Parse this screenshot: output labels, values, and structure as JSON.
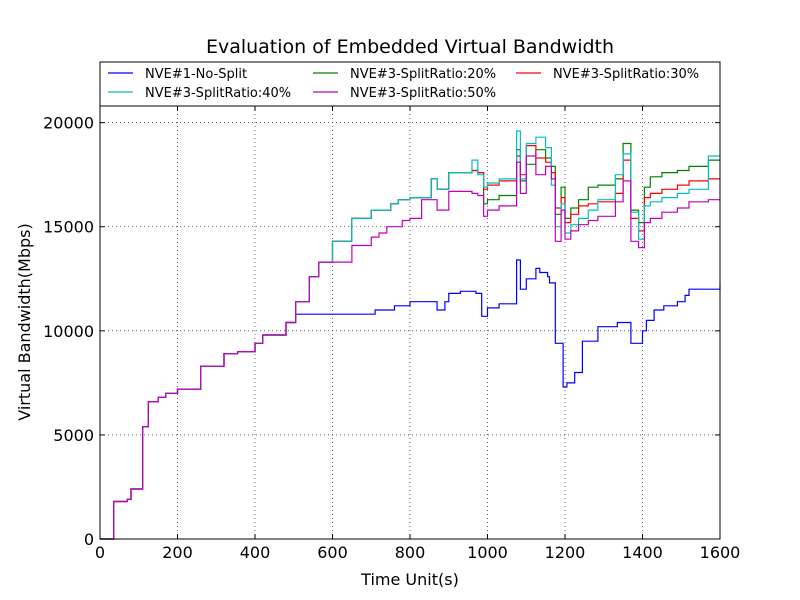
{
  "chart_data": {
    "type": "line",
    "title": "Evaluation of Embedded Virtual Bandwidth",
    "xlabel": "Time Unit(s)",
    "ylabel": "Virtual Bandwidth(Mbps)",
    "xlim": [
      0,
      1600
    ],
    "ylim": [
      0,
      20800
    ],
    "xticks": [
      0,
      200,
      400,
      600,
      800,
      1000,
      1200,
      1400,
      1600
    ],
    "yticks": [
      0,
      5000,
      10000,
      15000,
      20000
    ],
    "grid": true,
    "legend_position": "top",
    "series": [
      {
        "name": "NVE#1-No-Split",
        "color": "#0000ff",
        "x": [
          0,
          35,
          70,
          80,
          110,
          125,
          150,
          170,
          200,
          260,
          320,
          355,
          400,
          420,
          480,
          505,
          540,
          710,
          760,
          800,
          870,
          890,
          900,
          930,
          970,
          985,
          1000,
          1030,
          1075,
          1085,
          1100,
          1125,
          1135,
          1155,
          1160,
          1175,
          1195,
          1205,
          1225,
          1245,
          1285,
          1335,
          1370,
          1400,
          1410,
          1430,
          1455,
          1490,
          1510,
          1520,
          1600
        ],
        "y": [
          0,
          1800,
          1900,
          2400,
          5400,
          6600,
          6800,
          7000,
          7200,
          8300,
          8900,
          9000,
          9400,
          9800,
          10400,
          10800,
          10800,
          11000,
          11200,
          11400,
          11000,
          11400,
          11800,
          11900,
          11800,
          10700,
          11100,
          11300,
          13400,
          12000,
          12500,
          13000,
          12800,
          12600,
          12300,
          9400,
          7300,
          7500,
          8000,
          9500,
          10200,
          10400,
          9400,
          10000,
          10500,
          11000,
          11200,
          11400,
          11700,
          12000,
          12200
        ]
      },
      {
        "name": "NVE#3-SplitRatio:20%",
        "color": "#008000",
        "x": [
          0,
          35,
          70,
          80,
          110,
          125,
          150,
          170,
          200,
          260,
          320,
          355,
          400,
          420,
          480,
          505,
          540,
          565,
          600,
          650,
          700,
          750,
          770,
          800,
          855,
          870,
          900,
          960,
          975,
          990,
          1000,
          1030,
          1075,
          1085,
          1100,
          1125,
          1150,
          1165,
          1175,
          1190,
          1200,
          1215,
          1235,
          1260,
          1285,
          1330,
          1350,
          1370,
          1390,
          1405,
          1420,
          1450,
          1490,
          1520,
          1570,
          1600
        ],
        "y": [
          0,
          1800,
          1900,
          2400,
          5400,
          6600,
          6800,
          7000,
          7200,
          8300,
          8900,
          9000,
          9400,
          9800,
          10400,
          11400,
          12600,
          13300,
          14300,
          15400,
          15800,
          16100,
          16300,
          16400,
          17300,
          16800,
          17600,
          17700,
          17600,
          16100,
          16300,
          16500,
          18700,
          17200,
          18000,
          18700,
          18300,
          17900,
          15600,
          16900,
          15400,
          15900,
          16300,
          16900,
          17000,
          17300,
          19000,
          15800,
          15200,
          16900,
          17400,
          17600,
          17700,
          17900,
          18200,
          18200
        ]
      },
      {
        "name": "NVE#3-SplitRatio:30%",
        "color": "#ff0000",
        "x": [
          0,
          35,
          70,
          80,
          110,
          125,
          150,
          170,
          200,
          260,
          320,
          355,
          400,
          420,
          480,
          505,
          540,
          565,
          600,
          650,
          700,
          750,
          770,
          800,
          855,
          870,
          900,
          960,
          975,
          990,
          1000,
          1030,
          1075,
          1085,
          1100,
          1125,
          1150,
          1165,
          1175,
          1190,
          1200,
          1215,
          1235,
          1260,
          1285,
          1330,
          1350,
          1370,
          1390,
          1405,
          1420,
          1450,
          1490,
          1520,
          1570,
          1600
        ],
        "y": [
          0,
          1800,
          1900,
          2400,
          5400,
          6600,
          6800,
          7000,
          7200,
          8300,
          8900,
          9000,
          9400,
          9800,
          10400,
          11400,
          12600,
          13300,
          14300,
          15400,
          15800,
          16100,
          16300,
          16400,
          17300,
          16800,
          17600,
          17700,
          17600,
          16800,
          17000,
          17200,
          18400,
          17500,
          18900,
          18300,
          18100,
          17600,
          15900,
          16400,
          15200,
          15600,
          16000,
          16100,
          16200,
          16600,
          18200,
          15400,
          14800,
          16400,
          16600,
          16800,
          17000,
          17200,
          17300,
          17300
        ]
      },
      {
        "name": "NVE#3-SplitRatio:40%",
        "color": "#00bfbf",
        "x": [
          0,
          35,
          70,
          80,
          110,
          125,
          150,
          170,
          200,
          260,
          320,
          355,
          400,
          420,
          480,
          505,
          540,
          565,
          600,
          650,
          700,
          750,
          770,
          800,
          855,
          870,
          900,
          960,
          975,
          990,
          1000,
          1030,
          1075,
          1085,
          1100,
          1125,
          1150,
          1165,
          1175,
          1190,
          1200,
          1215,
          1235,
          1260,
          1285,
          1330,
          1350,
          1370,
          1390,
          1405,
          1420,
          1450,
          1490,
          1520,
          1570,
          1600
        ],
        "y": [
          0,
          1800,
          1900,
          2400,
          5400,
          6600,
          6800,
          7000,
          7200,
          8300,
          8900,
          9000,
          9400,
          9800,
          10400,
          11400,
          12600,
          13300,
          14300,
          15400,
          15800,
          16100,
          16300,
          16400,
          17300,
          16800,
          17600,
          18200,
          17500,
          16900,
          17100,
          17300,
          19600,
          17300,
          19000,
          19300,
          18800,
          17000,
          15000,
          16100,
          14700,
          15100,
          15400,
          15800,
          16300,
          17500,
          18500,
          15700,
          14400,
          16000,
          16200,
          16400,
          16600,
          16800,
          18400,
          18400
        ]
      },
      {
        "name": "NVE#3-SplitRatio:50%",
        "color": "#bf00bf",
        "x": [
          0,
          35,
          70,
          80,
          110,
          125,
          150,
          170,
          200,
          260,
          320,
          355,
          400,
          420,
          480,
          505,
          540,
          565,
          600,
          650,
          700,
          720,
          740,
          780,
          800,
          830,
          870,
          900,
          960,
          975,
          990,
          1000,
          1030,
          1075,
          1085,
          1100,
          1125,
          1150,
          1165,
          1175,
          1190,
          1200,
          1215,
          1235,
          1260,
          1285,
          1330,
          1350,
          1370,
          1390,
          1405,
          1420,
          1450,
          1490,
          1520,
          1570,
          1600
        ],
        "y": [
          0,
          1800,
          1900,
          2400,
          5400,
          6600,
          6800,
          7000,
          7200,
          8300,
          8900,
          9000,
          9400,
          9800,
          10400,
          11400,
          12600,
          13300,
          13300,
          14100,
          14500,
          14700,
          15000,
          15300,
          15400,
          16300,
          15800,
          16700,
          16600,
          16500,
          15500,
          15800,
          16000,
          18100,
          16600,
          18400,
          17500,
          17900,
          17300,
          14300,
          15800,
          14400,
          14800,
          15100,
          15300,
          15500,
          16200,
          17200,
          14300,
          14000,
          15200,
          15400,
          15700,
          15900,
          16200,
          16300,
          16300
        ]
      }
    ]
  }
}
